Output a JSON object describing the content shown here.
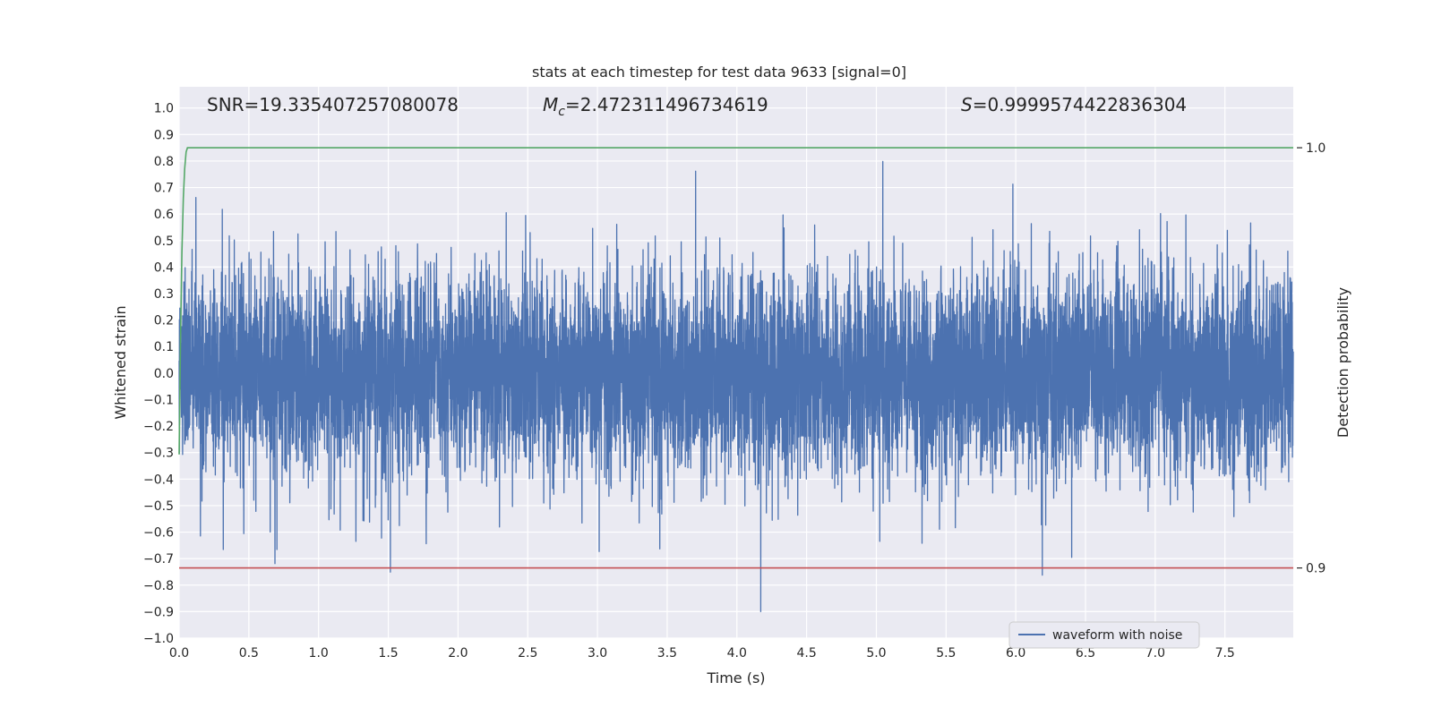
{
  "chart_data": {
    "type": "line",
    "title": "stats at each timestep for test data 9633 [signal=0]",
    "xlabel": "Time (s)",
    "ylabel": "Whitened strain",
    "ylabel_right": "Detection probability",
    "xlim": [
      0.0,
      7.99
    ],
    "ylim": [
      -1.0,
      1.08
    ],
    "ylim_right": [
      0.8833,
      1.0145
    ],
    "x_ticks": [
      "0.0",
      "0.5",
      "1.0",
      "1.5",
      "2.0",
      "2.5",
      "3.0",
      "3.5",
      "4.0",
      "4.5",
      "5.0",
      "5.5",
      "6.0",
      "6.5",
      "7.0",
      "7.5"
    ],
    "y_ticks": [
      "−1.0",
      "−0.9",
      "−0.8",
      "−0.7",
      "−0.6",
      "−0.5",
      "−0.4",
      "−0.3",
      "−0.2",
      "−0.1",
      "0.0",
      "0.1",
      "0.2",
      "0.3",
      "0.4",
      "0.5",
      "0.6",
      "0.7",
      "0.8",
      "0.9",
      "1.0"
    ],
    "y_ticks_right": [
      "0.9",
      "1.0"
    ],
    "grid": true,
    "legend_position": "lower-right",
    "annotations": {
      "snr": "SNR=19.335407257080078",
      "mc_symbol": "M",
      "mc_sub": "c",
      "mc_value": "=2.472311496734619",
      "s_symbol": "S",
      "s_value": "=0.9999574422836304"
    },
    "series": [
      {
        "name": "waveform with noise",
        "color": "#4c72b0",
        "description_stats": {
          "amplitude_abs_typical": 0.5,
          "max": 0.83,
          "min": -0.9
        }
      },
      {
        "color": "#55a868",
        "axis": "right",
        "x": [
          0.0,
          0.01,
          0.02,
          0.03,
          0.04,
          0.05,
          0.06,
          7.99
        ],
        "values": [
          0.927,
          0.955,
          0.975,
          0.988,
          0.995,
          0.999,
          1.0,
          1.0
        ]
      },
      {
        "color": "#c44e52",
        "axis": "right",
        "x": [
          0.0,
          7.99
        ],
        "values": [
          0.9,
          0.9
        ]
      }
    ],
    "colors": {
      "plot_bg": "#eaeaf2",
      "grid": "#ffffff",
      "waveform": "#4c72b0",
      "probability": "#55a868",
      "threshold": "#c44e52"
    }
  }
}
